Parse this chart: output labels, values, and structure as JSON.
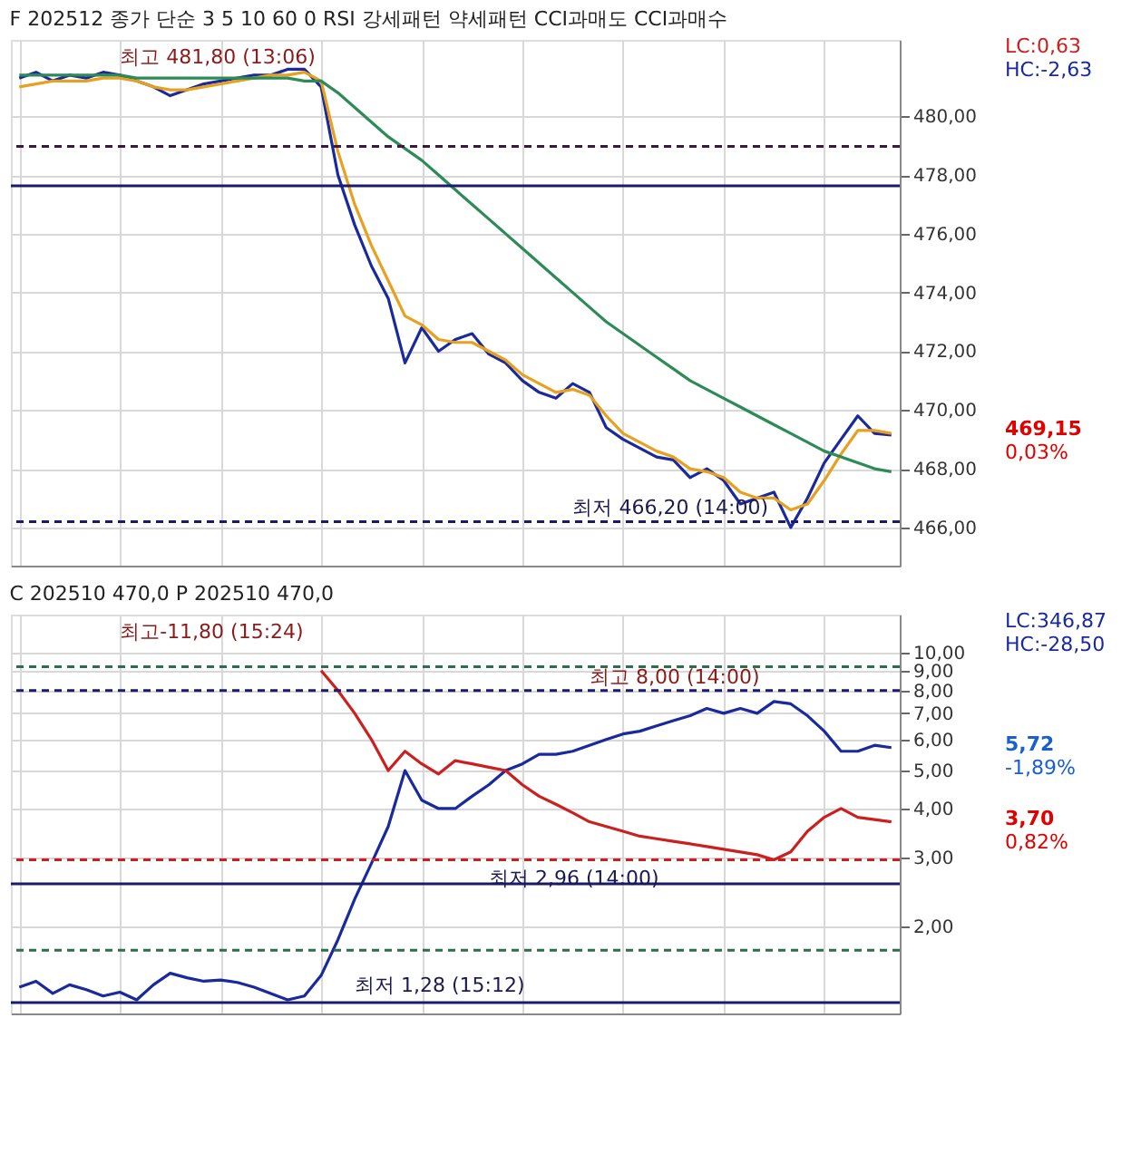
{
  "chart_data": [
    {
      "type": "line",
      "title": "F 202512  종가 단순 3  5  10  60  0  RSI 강세패턴  약세패턴  CCI과매도  CCI과매수",
      "categories": [
        null,
        null,
        null,
        null,
        null,
        null,
        null,
        null,
        null,
        null,
        null,
        null,
        null,
        null,
        null,
        null,
        null,
        null,
        null,
        null,
        null,
        null,
        null,
        null,
        null,
        null,
        null,
        null,
        null,
        null,
        null,
        null,
        null,
        null,
        null,
        null,
        null,
        null,
        null,
        null,
        null,
        null,
        null,
        null,
        null,
        null,
        null,
        null,
        null,
        null,
        null,
        null,
        null
      ],
      "series": [
        {
          "color": "#1a2a9c",
          "values": [
            481.3,
            481.5,
            481.2,
            481.4,
            481.3,
            481.5,
            481.4,
            481.2,
            481.0,
            480.7,
            480.9,
            481.1,
            481.2,
            481.3,
            481.4,
            481.4,
            481.6,
            481.6,
            481.0,
            478.0,
            476.3,
            474.9,
            473.8,
            471.6,
            472.8,
            472.0,
            472.4,
            472.6,
            471.9,
            471.6,
            471.0,
            470.6,
            470.4,
            470.9,
            470.6,
            469.4,
            469.0,
            468.7,
            468.4,
            468.3,
            467.7,
            468.0,
            467.6,
            466.8,
            467.0,
            467.2,
            466.0,
            467.0,
            468.2,
            469.0,
            469.8,
            469.2,
            469.15
          ]
        },
        {
          "color": "#e8a020",
          "values": [
            481.0,
            481.1,
            481.2,
            481.2,
            481.2,
            481.3,
            481.3,
            481.2,
            481.0,
            480.9,
            480.9,
            481.0,
            481.1,
            481.2,
            481.3,
            481.4,
            481.4,
            481.5,
            481.2,
            478.8,
            477.0,
            475.6,
            474.4,
            473.2,
            472.9,
            472.4,
            472.3,
            472.3,
            472.0,
            471.7,
            471.2,
            470.9,
            470.6,
            470.7,
            470.5,
            469.8,
            469.2,
            468.9,
            468.6,
            468.4,
            468.0,
            467.9,
            467.7,
            467.2,
            467.0,
            467.0,
            466.6,
            466.8,
            467.6,
            468.5,
            469.3,
            469.3,
            469.2
          ]
        },
        {
          "color": "#2e8b57",
          "values": [
            481.4,
            481.4,
            481.4,
            481.4,
            481.4,
            481.4,
            481.4,
            481.3,
            481.3,
            481.3,
            481.3,
            481.3,
            481.3,
            481.3,
            481.3,
            481.3,
            481.3,
            481.2,
            481.2,
            480.8,
            480.3,
            479.8,
            479.3,
            478.9,
            478.5,
            478.0,
            477.5,
            477.0,
            476.5,
            476.0,
            475.5,
            475.0,
            474.5,
            474.0,
            473.5,
            473.0,
            472.6,
            472.2,
            471.8,
            471.4,
            471.0,
            470.7,
            470.4,
            470.1,
            469.8,
            469.5,
            469.2,
            468.9,
            468.6,
            468.4,
            468.2,
            468.0,
            467.9
          ]
        }
      ],
      "ylim": [
        464.7,
        482.6
      ],
      "yticks": [
        {
          "value": 466,
          "label": "466,00"
        },
        {
          "value": 468,
          "label": "468,00"
        },
        {
          "value": 470,
          "label": "470,00"
        },
        {
          "value": 472,
          "label": "472,00"
        },
        {
          "value": 474,
          "label": "474,00"
        },
        {
          "value": 476,
          "label": "476,00"
        },
        {
          "value": 478,
          "label": "478,00"
        },
        {
          "value": 480,
          "label": "480,00"
        }
      ],
      "grid": true,
      "tick_labels": "y",
      "ref_lines": [
        {
          "axis": "y",
          "value": 478.97,
          "line_style": "dashed",
          "color": "#3a1a3a"
        },
        {
          "axis": "y",
          "value": 477.63,
          "color": "#1a1a6e"
        },
        {
          "axis": "y",
          "value": 466.2,
          "line_style": "dashed",
          "color": "#1a1a6e"
        }
      ],
      "annotations": [
        "최고 481,80 (13:06)",
        {
          "text": "최저 466,20 (14:00)",
          "y": 466.2
        },
        "469,15",
        "0,03%",
        "LC:0,63",
        "HC:-2,63"
      ]
    },
    {
      "type": "line",
      "title": "C 202510 470,0  P 202510 470,0",
      "categories": [
        null,
        null,
        null,
        null,
        null,
        null,
        null,
        null,
        null,
        null,
        null,
        null,
        null,
        null,
        null,
        null,
        null,
        null,
        null,
        null,
        null,
        null,
        null,
        null,
        null,
        null,
        null,
        null,
        null,
        null,
        null,
        null,
        null,
        null,
        null,
        null,
        null,
        null,
        null,
        null,
        null,
        null,
        null,
        null,
        null,
        null,
        null,
        null,
        null,
        null,
        null,
        null,
        null
      ],
      "series": [
        {
          "color": "#1a2a9c",
          "values": [
            1.4,
            1.45,
            1.35,
            1.42,
            1.38,
            1.33,
            1.36,
            1.3,
            1.42,
            1.52,
            1.48,
            1.45,
            1.46,
            1.44,
            1.4,
            1.35,
            1.3,
            1.33,
            1.5,
            1.85,
            2.35,
            2.9,
            3.6,
            5.0,
            4.2,
            4.0,
            4.0,
            4.3,
            4.6,
            5.0,
            5.2,
            5.5,
            5.5,
            5.6,
            5.8,
            6.0,
            6.2,
            6.3,
            6.5,
            6.7,
            6.9,
            7.2,
            7.0,
            7.2,
            7.0,
            7.5,
            7.4,
            6.9,
            6.3,
            5.6,
            5.6,
            5.8,
            5.72
          ]
        },
        {
          "color": "#cc2020",
          "values": [
            null,
            null,
            null,
            null,
            null,
            null,
            null,
            null,
            null,
            null,
            null,
            null,
            null,
            null,
            null,
            null,
            null,
            null,
            9.0,
            8.0,
            7.0,
            6.0,
            5.0,
            5.6,
            5.2,
            4.9,
            5.3,
            5.2,
            5.1,
            5.0,
            4.6,
            4.3,
            4.1,
            3.9,
            3.7,
            3.6,
            3.5,
            3.4,
            3.35,
            3.3,
            3.25,
            3.2,
            3.15,
            3.1,
            3.05,
            2.96,
            3.1,
            3.5,
            3.8,
            4.0,
            3.8,
            3.75,
            3.7
          ]
        }
      ],
      "log": true,
      "ylim": [
        1.2,
        12.5
      ],
      "yticks": [
        {
          "value": 2,
          "label": "2,00"
        },
        {
          "value": 3,
          "label": "3,00"
        },
        {
          "value": 4,
          "label": "4,00"
        },
        {
          "value": 5,
          "label": "5,00"
        },
        {
          "value": 6,
          "label": "6,00"
        },
        {
          "value": 7,
          "label": "7,00"
        },
        {
          "value": 8,
          "label": "8,00"
        },
        {
          "value": 9,
          "label": "9,00"
        },
        {
          "value": 10,
          "label": "10,00"
        }
      ],
      "grid": true,
      "tick_labels": "y",
      "ref_lines": [
        {
          "axis": "y",
          "value": 9.2,
          "line_style": "dashed",
          "color": "#2e6e4e"
        },
        {
          "axis": "y",
          "value": 8.0,
          "line_style": "dashed",
          "color": "#1a1a6e"
        },
        {
          "axis": "y",
          "value": 2.96,
          "line_style": "dashed",
          "color": "#cc2020"
        },
        {
          "axis": "y",
          "value": 2.57,
          "color": "#1a1a6e"
        },
        {
          "axis": "y",
          "value": 1.74,
          "line_style": "dashed",
          "color": "#2e6e4e"
        },
        {
          "axis": "y",
          "value": 1.28,
          "color": "#1a1a6e"
        }
      ],
      "annotations": [
        "최고-11,80 (15:24)",
        {
          "text": "최고 8,00 (14:00)",
          "y": 8.0
        },
        {
          "text": "최저 2,96 (14:00)",
          "y": 2.96
        },
        "최저 1,28 (15:12)",
        "LC:346,87",
        "HC:-28,50",
        "5,72",
        "-1,89%",
        "3,70",
        "0,82%"
      ]
    }
  ]
}
